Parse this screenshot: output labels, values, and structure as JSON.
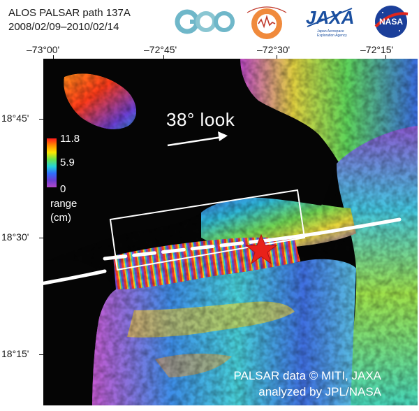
{
  "header": {
    "title_line1": "ALOS PALSAR path 137A",
    "title_line2": "2008/02/09–2010/02/14"
  },
  "logos": {
    "geo": "GEO",
    "seismological": "Seismological Laboratory · California Institute of Technology",
    "jaxa": "JAXA",
    "jaxa_sub": "Japan Aerospace Exploration Agency",
    "nasa": "NASA"
  },
  "axes": {
    "longitude_ticks": [
      "–73°00'",
      "–72°45'",
      "–72°30'",
      "–72°15'"
    ],
    "latitude_ticks": [
      "18°45'",
      "18°30'",
      "18°15'"
    ]
  },
  "map": {
    "look_direction_label": "38° look",
    "colorbar": {
      "max": "11.8",
      "mid": "5.9",
      "min": "0",
      "unit_line1": "range",
      "unit_line2": "(cm)",
      "colors": [
        "#ff1a1a",
        "#ff8c00",
        "#ffe600",
        "#6de34a",
        "#25d3d8",
        "#2f6fff",
        "#6a3fd3",
        "#b548c9"
      ]
    },
    "credit_line1": "PALSAR data © MITI, JAXA",
    "credit_line2": "analyzed by JPL/NASA",
    "epicenter_marker": "red-star",
    "fault_line_color": "#ffffff"
  }
}
